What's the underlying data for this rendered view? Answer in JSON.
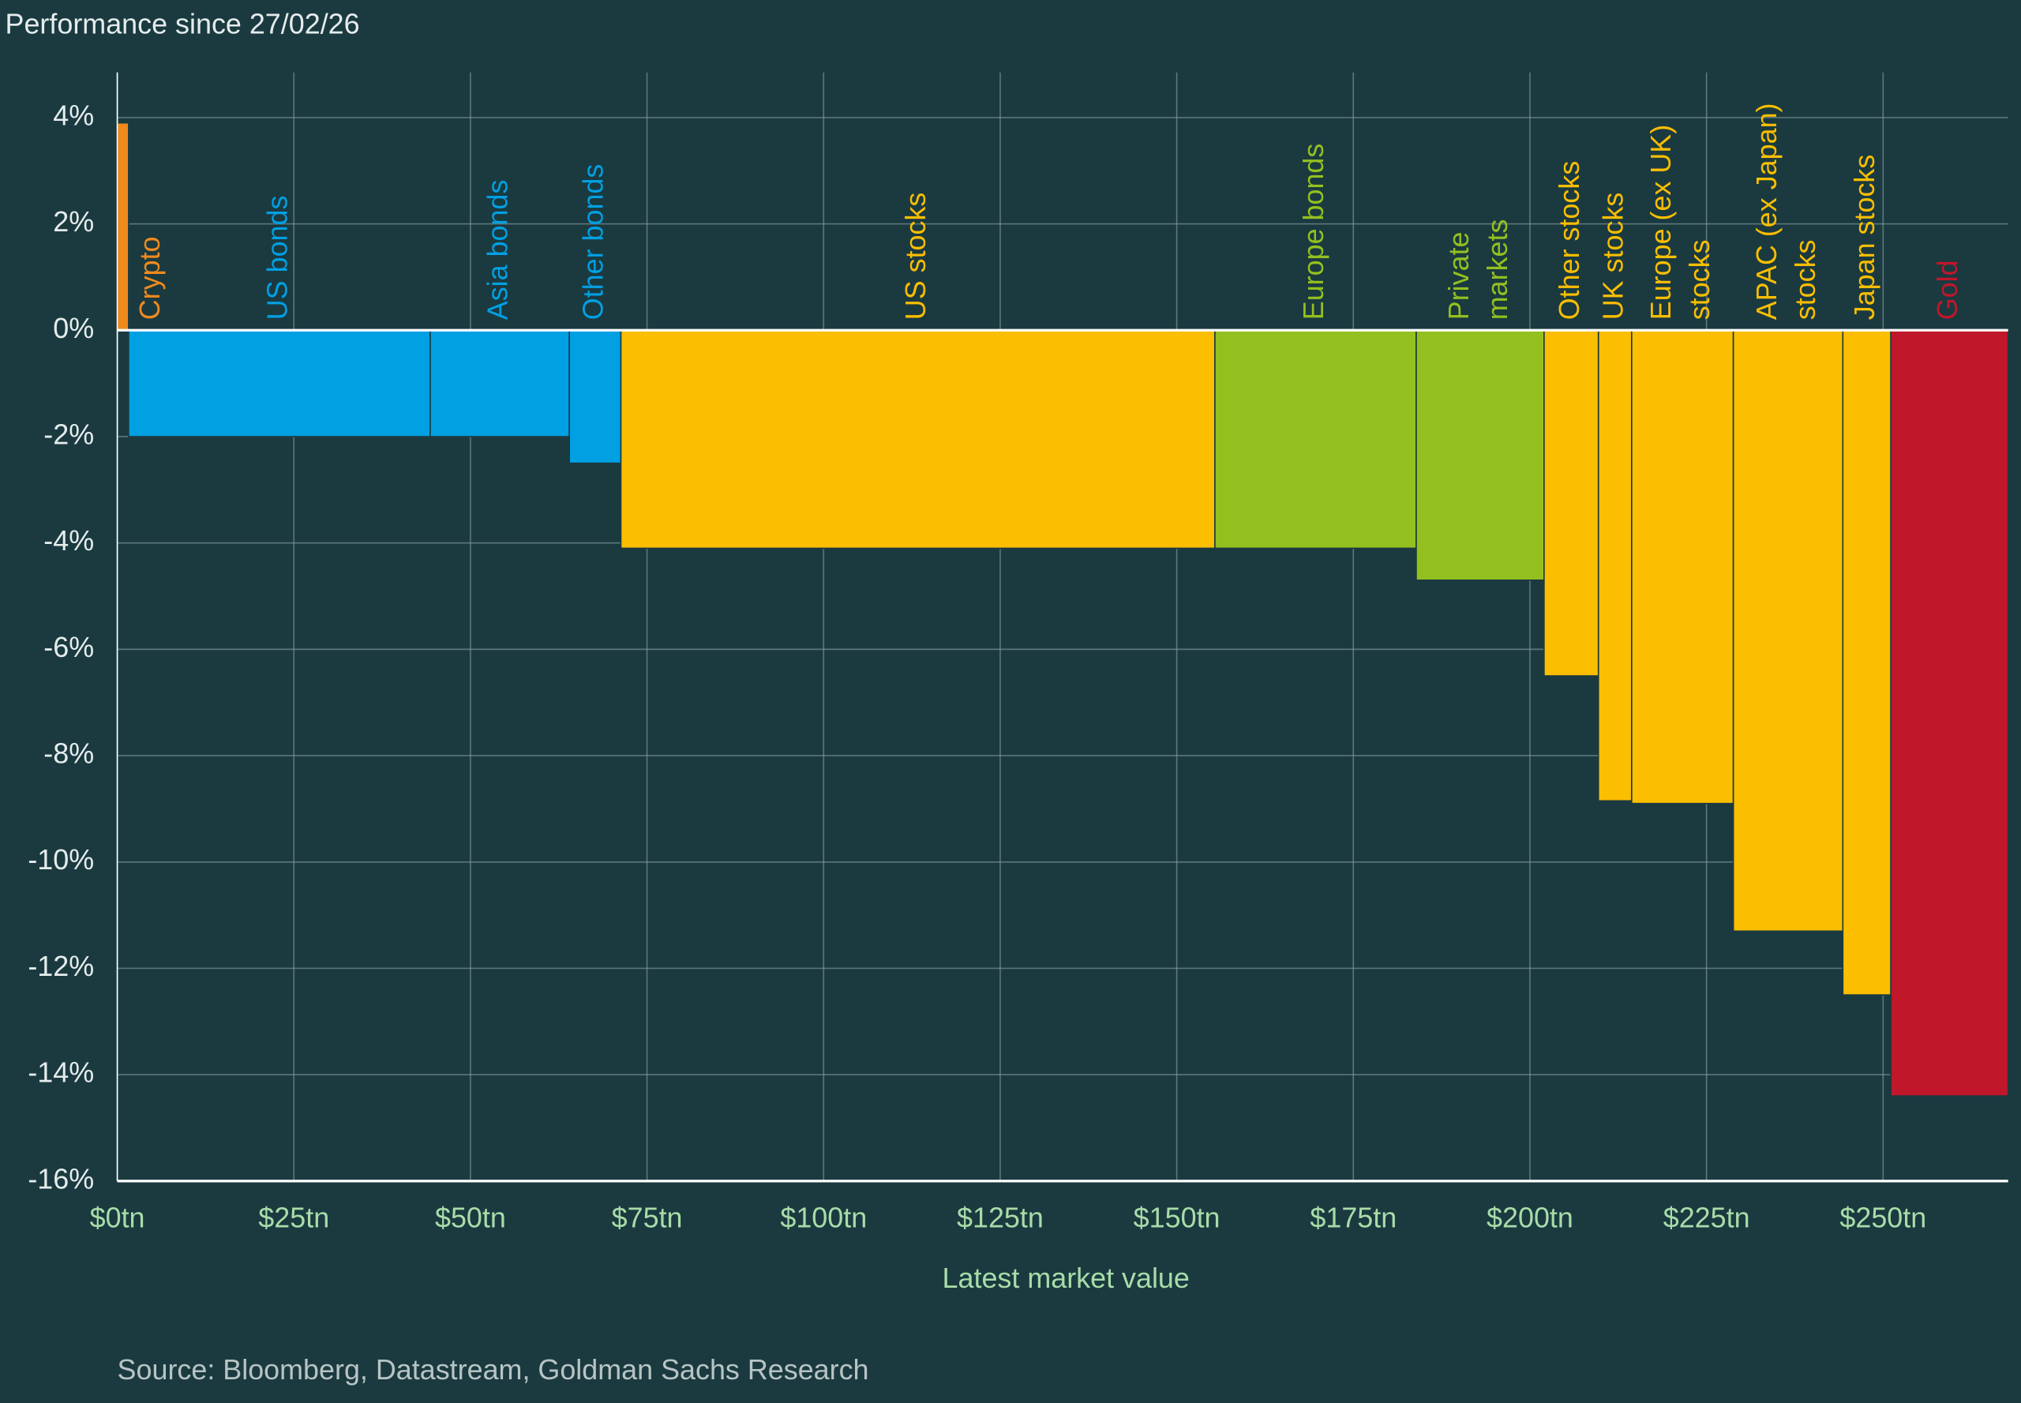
{
  "chart_data": {
    "type": "variable-width-bar",
    "title": "Performance since 27/02/26",
    "x_label": "Latest market value",
    "source": "Source: Bloomberg, Datastream, Goldman Sachs Research",
    "categories": [
      [
        "Crypto"
      ],
      [
        "US bonds"
      ],
      [
        "Asia bonds"
      ],
      [
        "Other bonds"
      ],
      [
        "US stocks"
      ],
      [
        "Europe bonds"
      ],
      [
        "Private",
        "markets"
      ],
      [
        "Other stocks"
      ],
      [
        "UK stocks"
      ],
      [
        "Europe (ex UK)",
        "stocks"
      ],
      [
        "APAC (ex Japan)",
        "stocks"
      ],
      [
        "Japan stocks"
      ],
      [
        "Gold"
      ]
    ],
    "widths": [
      1.6,
      42.7,
      19.7,
      7.3,
      84.1,
      28.5,
      18.1,
      7.7,
      4.7,
      14.4,
      15.5,
      6.8,
      16.6
    ],
    "values": [
      3.9,
      -2.0,
      -2.0,
      -2.5,
      -4.1,
      -4.1,
      -4.7,
      -6.5,
      -8.85,
      -8.9,
      -11.3,
      -12.5,
      -14.4
    ],
    "colors": [
      "#f08a1c",
      "#00a0e3",
      "#00a0e3",
      "#00a0e3",
      "#fbbe00",
      "#93c01f",
      "#93c01f",
      "#fbbe00",
      "#fbbe00",
      "#fbbe00",
      "#fbbe00",
      "#fbbe00",
      "#c0172a"
    ],
    "xlim": [
      0,
      267.7
    ],
    "xticks": [
      {
        "value": 0,
        "label": "$0tn"
      },
      {
        "value": 25,
        "label": "$25tn"
      },
      {
        "value": 50,
        "label": "$50tn"
      },
      {
        "value": 75,
        "label": "$75tn"
      },
      {
        "value": 100,
        "label": "$100tn"
      },
      {
        "value": 125,
        "label": "$125tn"
      },
      {
        "value": 150,
        "label": "$150tn"
      },
      {
        "value": 175,
        "label": "$175tn"
      },
      {
        "value": 200,
        "label": "$200tn"
      },
      {
        "value": 225,
        "label": "$225tn"
      },
      {
        "value": 250,
        "label": "$250tn"
      }
    ],
    "ylim": [
      -16,
      4
    ],
    "yticks": [
      {
        "value": 4,
        "label": "4%"
      },
      {
        "value": 2,
        "label": "2%"
      },
      {
        "value": 0,
        "label": "0%"
      },
      {
        "value": -2,
        "label": "-2%"
      },
      {
        "value": -4,
        "label": "-4%"
      },
      {
        "value": -6,
        "label": "-6%"
      },
      {
        "value": -8,
        "label": "-8%"
      },
      {
        "value": -10,
        "label": "-10%"
      },
      {
        "value": -12,
        "label": "-12%"
      },
      {
        "value": -14,
        "label": "-14%"
      },
      {
        "value": -16,
        "label": "-16%"
      }
    ],
    "grid": true
  }
}
